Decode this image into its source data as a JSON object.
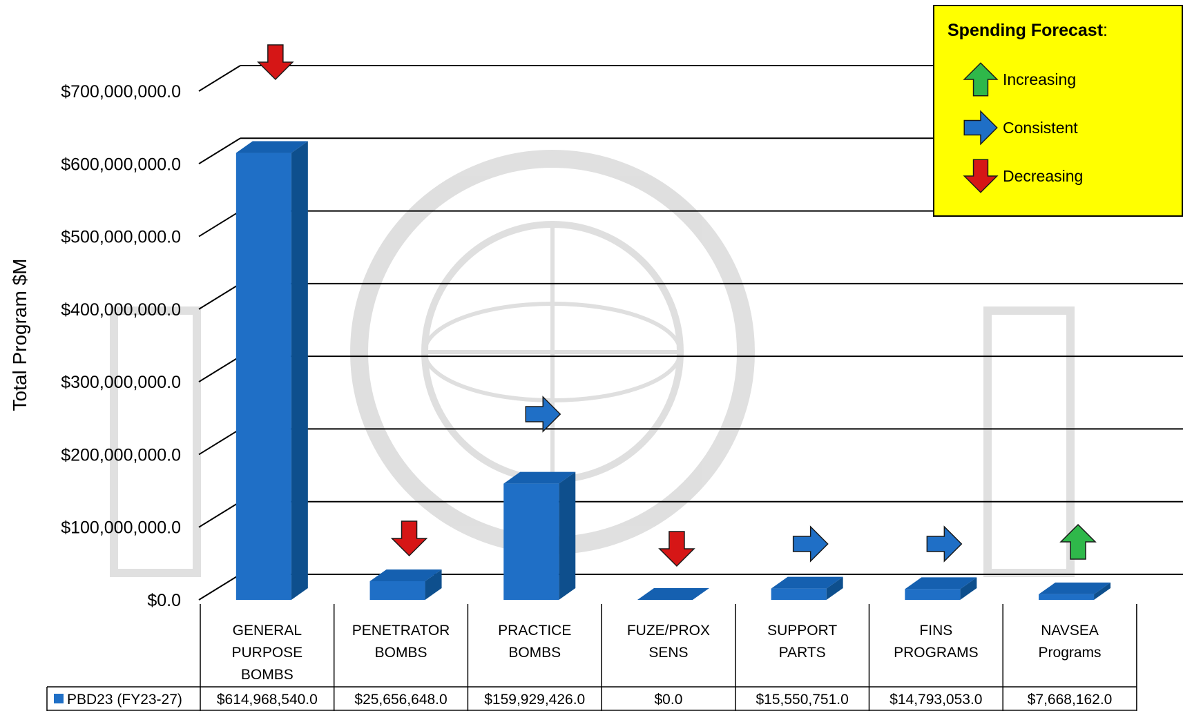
{
  "chart_data": {
    "type": "bar",
    "ylabel": "Total Program $M",
    "ylim": [
      0,
      700000000
    ],
    "yticks": [
      "$0.0",
      "$100,000,000.0",
      "$200,000,000.0",
      "$300,000,000.0",
      "$400,000,000.0",
      "$500,000,000.0",
      "$600,000,000.0",
      "$700,000,000.0"
    ],
    "ytick_values": [
      0,
      100000000,
      200000000,
      300000000,
      400000000,
      500000000,
      600000000,
      700000000
    ],
    "categories": [
      [
        "GENERAL",
        "PURPOSE",
        "BOMBS"
      ],
      [
        "PENETRATOR",
        "BOMBS"
      ],
      [
        "PRACTICE",
        "BOMBS"
      ],
      [
        "FUZE/PROX",
        "SENS"
      ],
      [
        "SUPPORT",
        "PARTS"
      ],
      [
        "FINS",
        "PROGRAMS"
      ],
      [
        "NAVSEA",
        "Programs"
      ]
    ],
    "series": [
      {
        "name": "PBD23 (FY23-27)",
        "values": [
          614968540,
          25656648,
          159929426,
          0,
          15550751,
          14793053,
          7668162
        ],
        "table_labels": [
          "$614,968,540.0",
          "$25,656,648.0",
          "$159,929,426.0",
          "$0.0",
          "$15,550,751.0",
          "$14,793,053.0",
          "$7,668,162.0"
        ]
      }
    ],
    "forecast": [
      "decreasing",
      "decreasing",
      "consistent",
      "decreasing",
      "consistent",
      "consistent",
      "increasing"
    ],
    "grid": true,
    "legend": {
      "title": "Spending Forecast",
      "title_suffix": ":",
      "placement": "top-right",
      "items": [
        {
          "key": "increasing",
          "label": "Increasing",
          "icon": "up-arrow-icon"
        },
        {
          "key": "consistent",
          "label": "Consistent",
          "icon": "right-arrow-icon"
        },
        {
          "key": "decreasing",
          "label": "Decreasing",
          "icon": "down-arrow-icon"
        }
      ]
    },
    "colors": {
      "bar_front": "#1f6fc6",
      "bar_side": "#0e4f8d",
      "bar_top": "#1560b0",
      "series_key": "#1f6fc6",
      "legend_bg": "#ffff00",
      "increasing": "#2fb84a",
      "consistent": "#1f6fc6",
      "decreasing": "#d61616"
    }
  }
}
